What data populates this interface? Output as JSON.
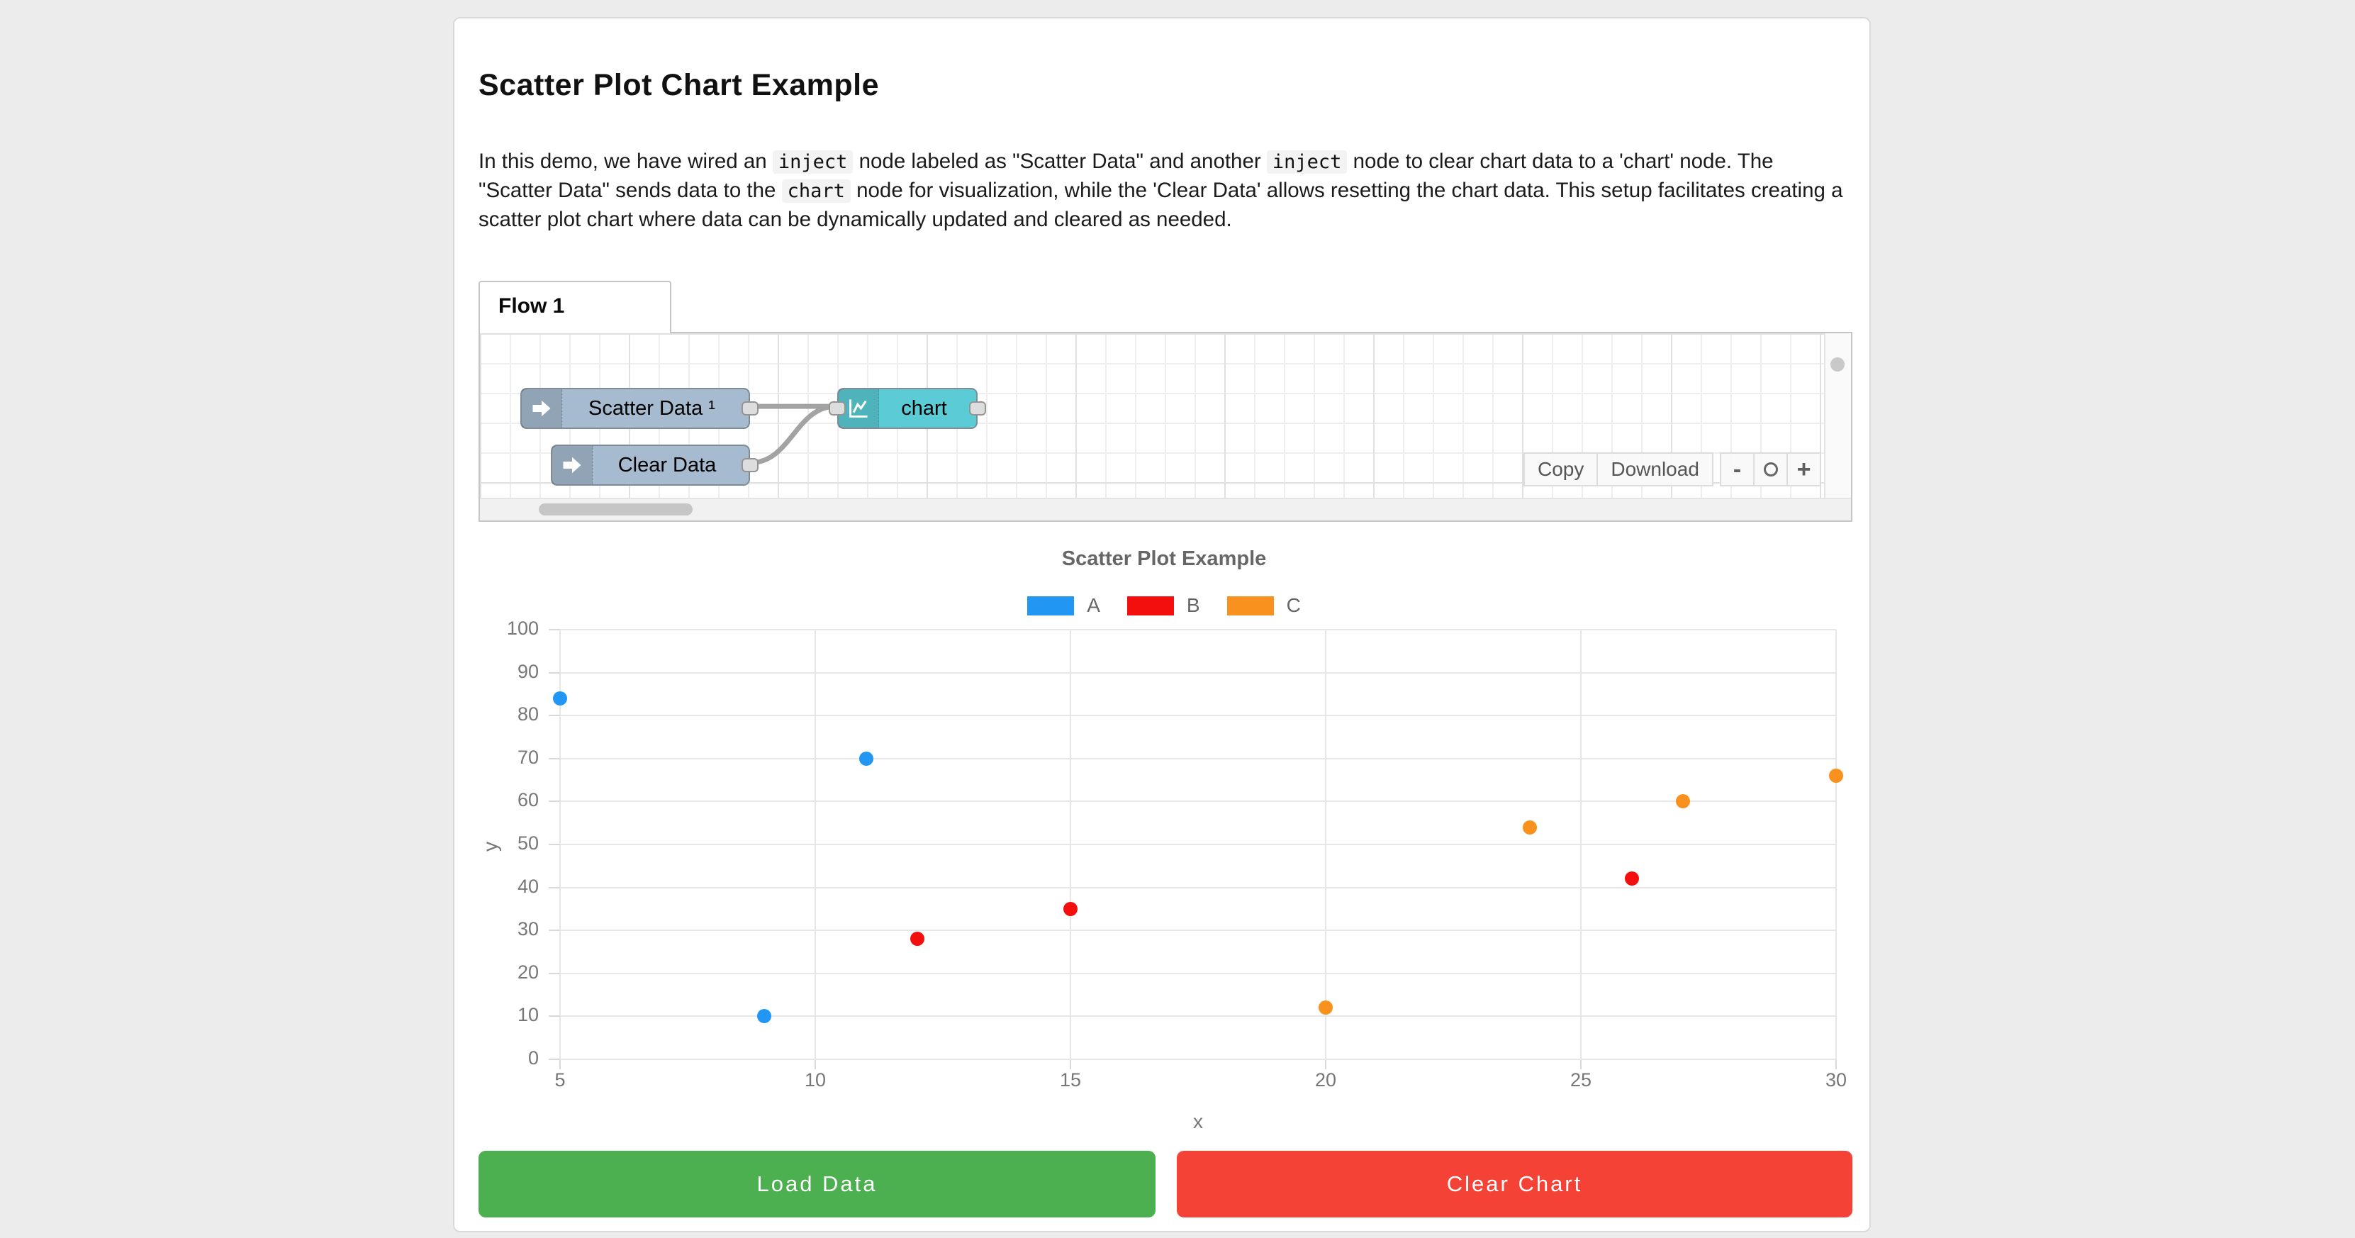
{
  "page": {
    "title": "Scatter Plot Chart Example"
  },
  "description": {
    "parts": [
      {
        "t": "text",
        "v": "In this demo, we have wired an "
      },
      {
        "t": "code",
        "v": "inject"
      },
      {
        "t": "text",
        "v": " node labeled as \"Scatter Data\" and another "
      },
      {
        "t": "code",
        "v": "inject"
      },
      {
        "t": "text",
        "v": " node to clear chart data to a 'chart' node. The \"Scatter Data\" sends data to the "
      },
      {
        "t": "code",
        "v": "chart"
      },
      {
        "t": "text",
        "v": " node for visualization, while the 'Clear Data' allows resetting the chart data. This setup facilitates creating a scatter plot chart where data can be dynamically updated and cleared as needed."
      }
    ]
  },
  "flow_editor": {
    "tab_label": "Flow 1",
    "nodes": {
      "scatter": {
        "label": "Scatter Data ¹",
        "type": "inject"
      },
      "clear": {
        "label": "Clear Data",
        "type": "inject"
      },
      "chart": {
        "label": "chart",
        "type": "chart"
      }
    },
    "toolbar": {
      "copy": "Copy",
      "download": "Download",
      "zoom_out": "-",
      "zoom_in": "+",
      "zoom_reset_icon": "circle-icon"
    },
    "colors": {
      "inject_node": "#a6bbcf",
      "chart_node": "#5bccd5",
      "wire": "#a3a3a3"
    }
  },
  "chart_data": {
    "type": "scatter",
    "title": "Scatter Plot Example",
    "xlabel": "x",
    "ylabel": "y",
    "xlim": [
      5,
      30
    ],
    "ylim": [
      0,
      100
    ],
    "x_ticks": [
      5,
      10,
      15,
      20,
      25,
      30
    ],
    "y_ticks": [
      0,
      10,
      20,
      30,
      40,
      50,
      60,
      70,
      80,
      90,
      100
    ],
    "grid": true,
    "legend_position": "top",
    "series": [
      {
        "name": "A",
        "color": "#2196f3",
        "points": [
          [
            5,
            84
          ],
          [
            9,
            10
          ],
          [
            11,
            70
          ]
        ]
      },
      {
        "name": "B",
        "color": "#f40f0f",
        "points": [
          [
            12,
            28
          ],
          [
            15,
            35
          ],
          [
            26,
            42
          ]
        ]
      },
      {
        "name": "C",
        "color": "#f9911e",
        "points": [
          [
            20,
            12
          ],
          [
            24,
            54
          ],
          [
            27,
            60
          ],
          [
            30,
            66
          ]
        ]
      }
    ]
  },
  "actions": {
    "load": "Load Data",
    "clear": "Clear Chart"
  },
  "action_colors": {
    "load": "#4caf50",
    "clear": "#f44336"
  }
}
